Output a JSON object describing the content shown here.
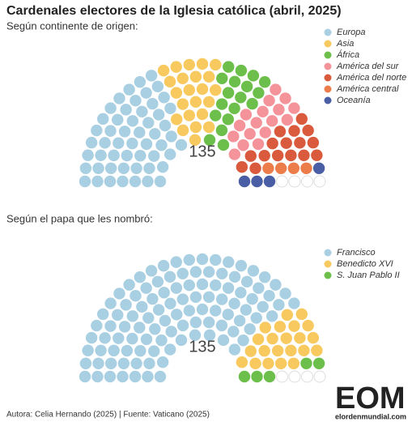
{
  "title": "Cardenales electores de la Iglesia católica (abril, 2025)",
  "chart_data": [
    {
      "type": "parliament",
      "subtitle": "Según continente de origen:",
      "total": 135,
      "series": [
        {
          "name": "Europa",
          "color": "#a9cfe2",
          "values": [
            53
          ]
        },
        {
          "name": "Asia",
          "color": "#f7c95e",
          "values": [
            23
          ]
        },
        {
          "name": "África",
          "color": "#6cbf4a",
          "values": [
            18
          ]
        },
        {
          "name": "América del sur",
          "color": "#f4939a",
          "values": [
            17
          ]
        },
        {
          "name": "América del norte",
          "color": "#d95a3c",
          "values": [
            16
          ]
        },
        {
          "name": "América central",
          "color": "#ec7d4b",
          "values": [
            4
          ]
        },
        {
          "name": "Oceanía",
          "color": "#4a5ea6",
          "values": [
            4
          ]
        }
      ]
    },
    {
      "type": "parliament",
      "subtitle": "Según el papa que les nombró:",
      "total": 135,
      "series": [
        {
          "name": "Francisco",
          "color": "#a9cfe2",
          "values": [
            108
          ]
        },
        {
          "name": "Benedicto XVI",
          "color": "#f7c95e",
          "values": [
            22
          ]
        },
        {
          "name": "S. Juan Pablo II",
          "color": "#6cbf4a",
          "values": [
            5
          ]
        }
      ]
    }
  ],
  "footer": "Autora: Celia Hernando (2025) | Fuente: Vaticano (2025)",
  "logo": {
    "mark": "EOM",
    "url": "elordenmundial.com"
  }
}
